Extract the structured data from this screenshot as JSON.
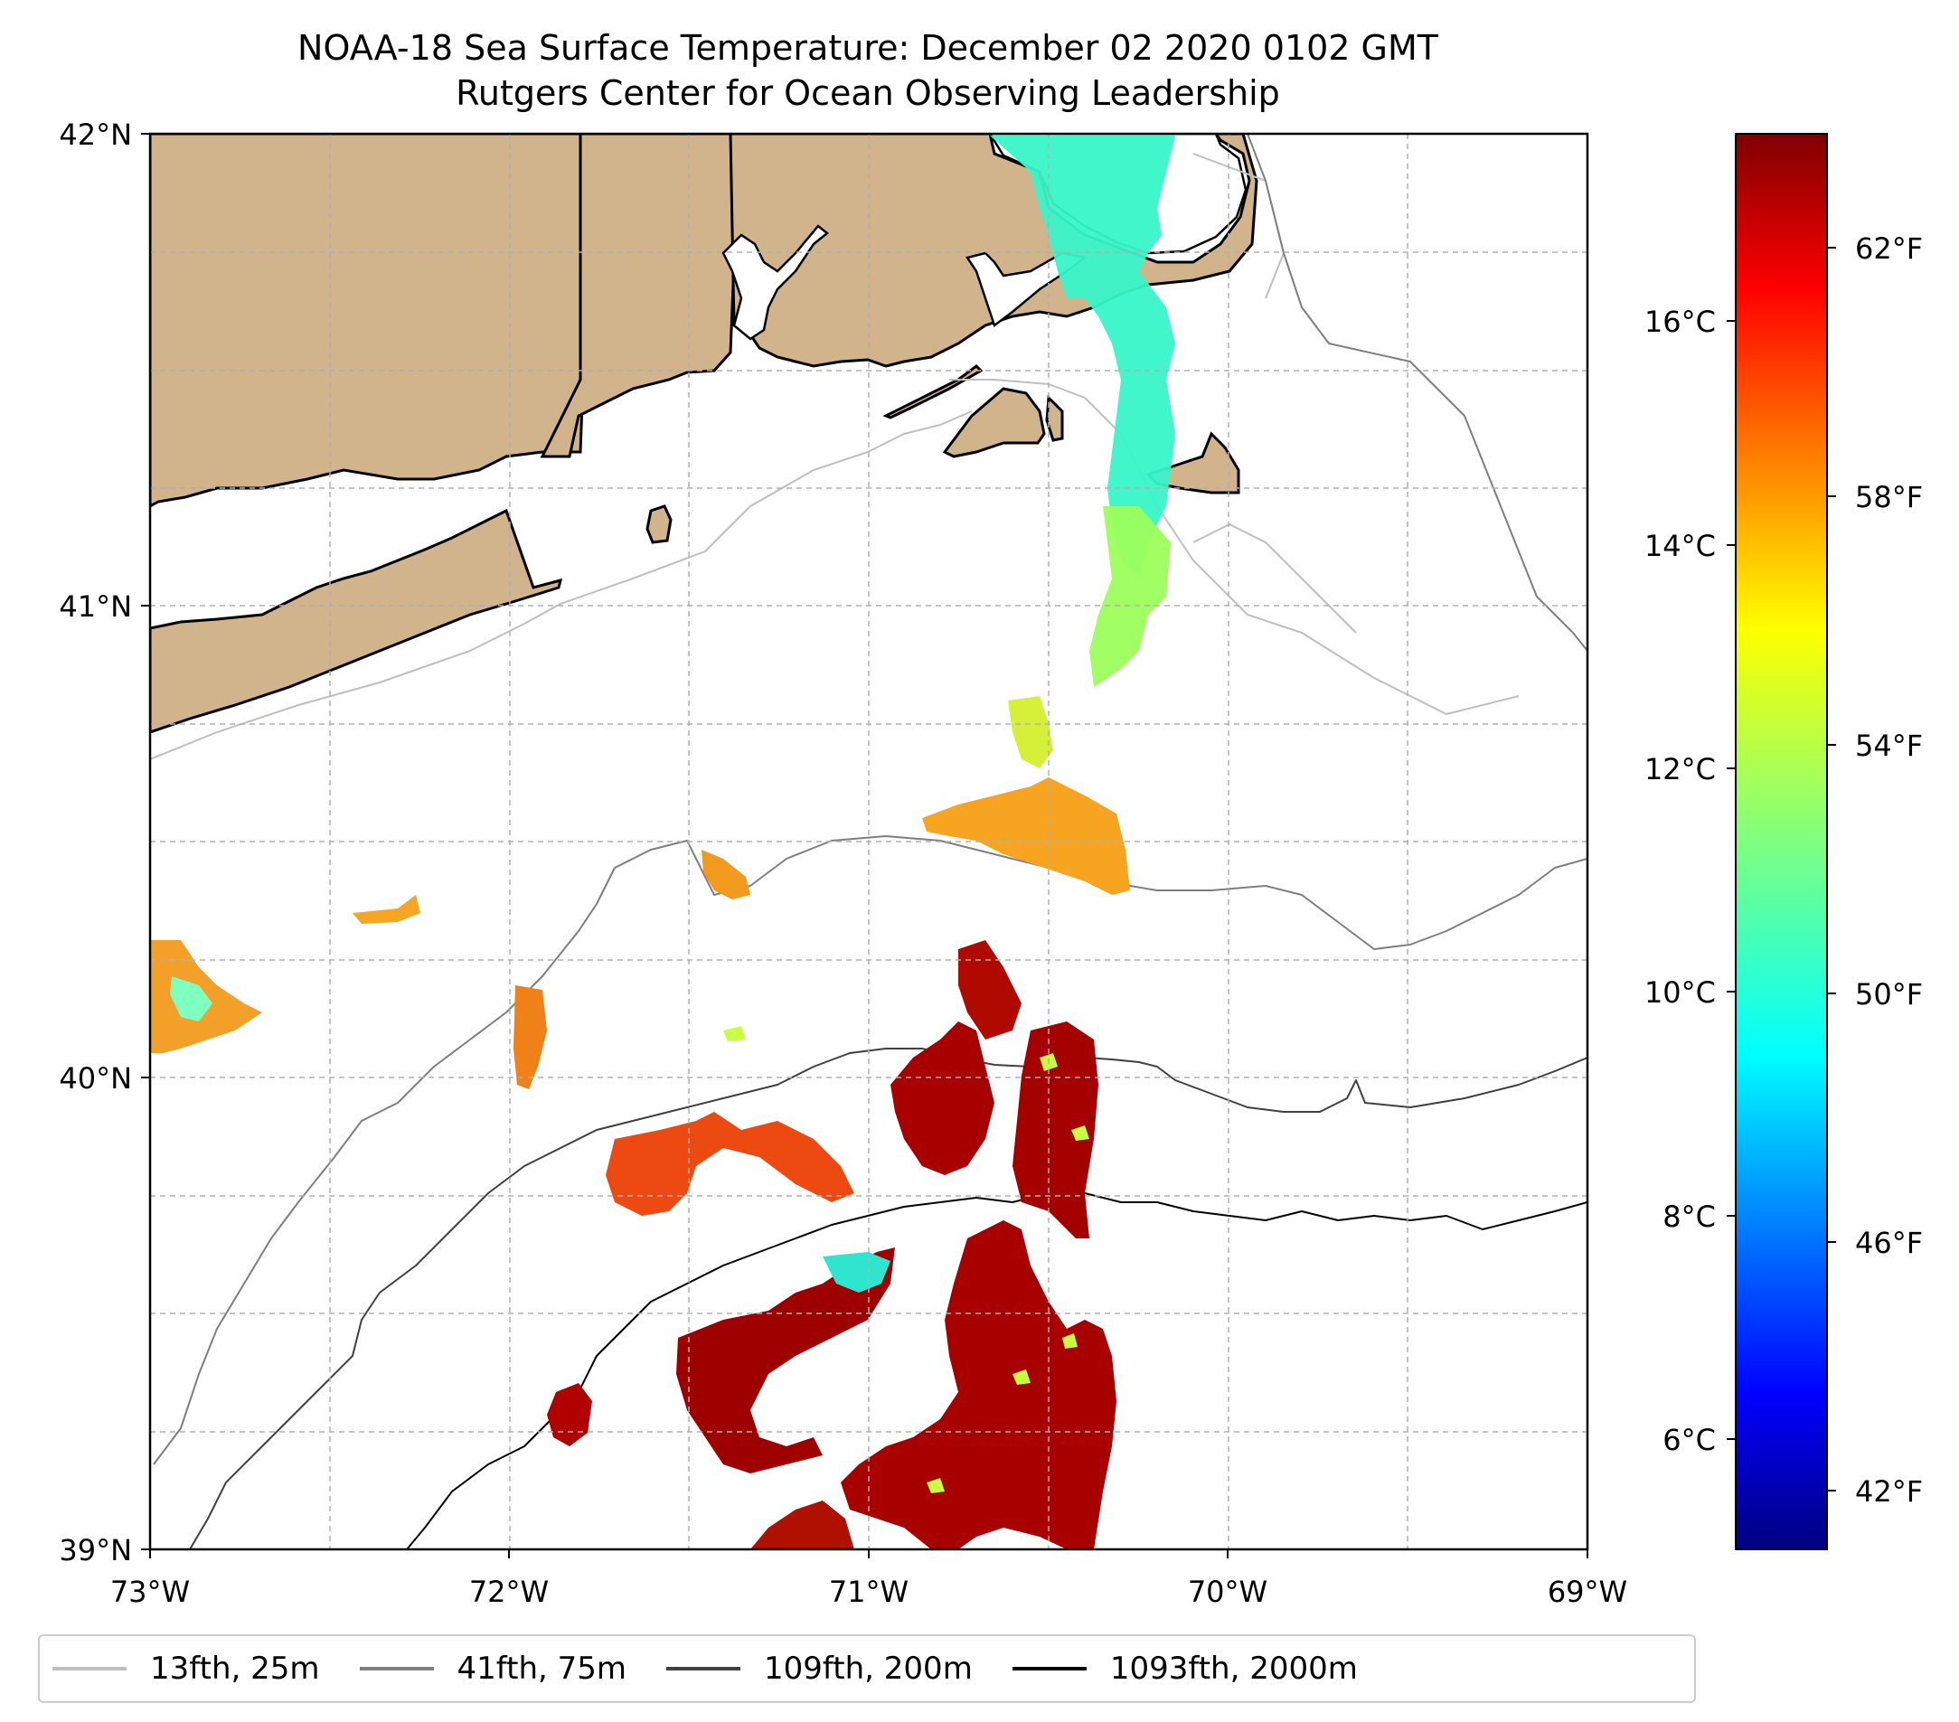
{
  "title": {
    "line1": "NOAA-18 Sea Surface Temperature: December 02 2020 0102 GMT",
    "line2": "Rutgers Center for Ocean Observing Leadership"
  },
  "map": {
    "lon_range": [
      -73,
      -69
    ],
    "lat_range": [
      39,
      42
    ],
    "lon_ticks": [
      "73°W",
      "72°W",
      "71°W",
      "70°W",
      "69°W"
    ],
    "lat_ticks": [
      "42°N",
      "41°N",
      "40°N",
      "39°N"
    ],
    "gridlines": true,
    "colors": {
      "land": "#d2b48c",
      "ocean": "#ffffff",
      "coastline": "#000000",
      "grid": "#b0b0b0"
    }
  },
  "colorbar": {
    "colormap": "jet",
    "celsius_ticks": [
      "16°C",
      "14°C",
      "12°C",
      "10°C",
      "8°C",
      "6°C"
    ],
    "fahrenheit_ticks": [
      "62°F",
      "58°F",
      "54°F",
      "50°F",
      "46°F",
      "42°F"
    ],
    "celsius_values": [
      16,
      14,
      12,
      10,
      8,
      6
    ],
    "fahrenheit_values": [
      62,
      58,
      54,
      50,
      46,
      42
    ],
    "range_celsius": [
      5.2,
      17.6
    ]
  },
  "legend": {
    "items": [
      {
        "label": "13fth, 25m",
        "color": "#bfbfbf"
      },
      {
        "label": "41fth, 75m",
        "color": "#7f7f7f"
      },
      {
        "label": "109fth, 200m",
        "color": "#404040"
      },
      {
        "label": "1093fth, 2000m",
        "color": "#000000"
      }
    ]
  }
}
